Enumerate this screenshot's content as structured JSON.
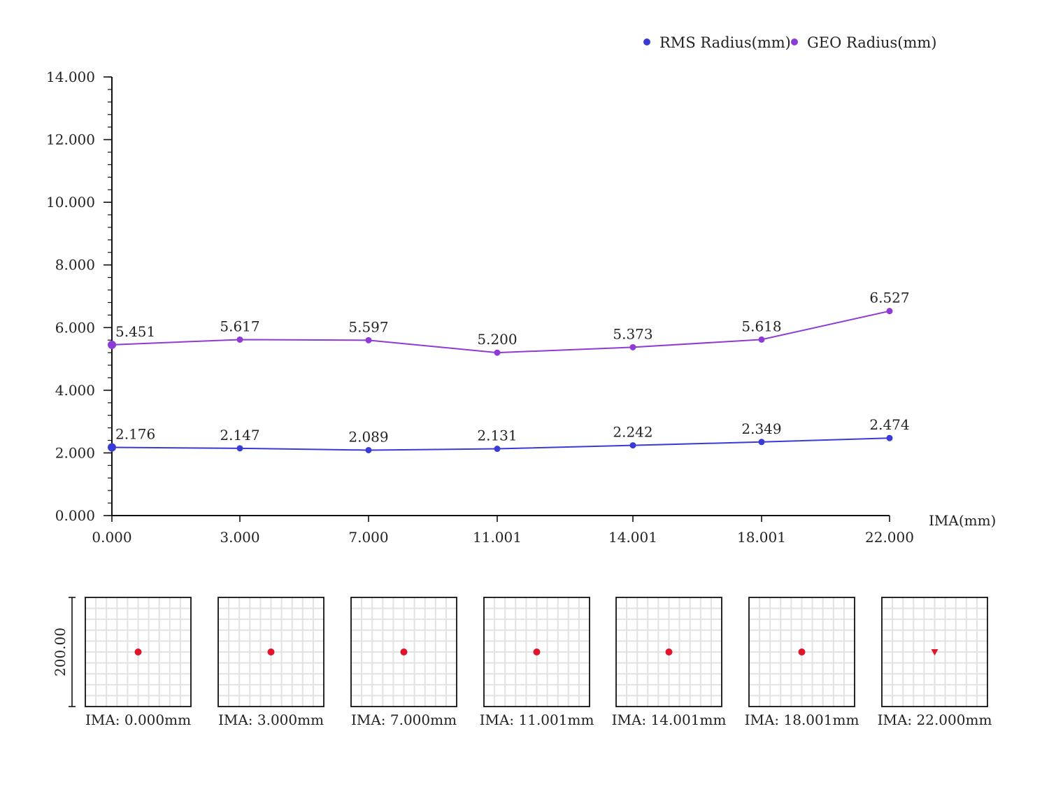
{
  "chart_data": {
    "type": "line",
    "xlabel": "IMA(mm)",
    "ylabel": "",
    "categories": [
      "0.000",
      "3.000",
      "7.000",
      "11.001",
      "14.001",
      "18.001",
      "22.000"
    ],
    "y_ticks": [
      "0.000",
      "2.000",
      "4.000",
      "6.000",
      "8.000",
      "10.000",
      "12.000",
      "14.000"
    ],
    "ylim": [
      0,
      14
    ],
    "grid": false,
    "legend_position": "top-right",
    "series": [
      {
        "name": "RMS Radius(mm)",
        "color": "#3a3ad6",
        "values": [
          2.176,
          2.147,
          2.089,
          2.131,
          2.242,
          2.349,
          2.474
        ],
        "labels": [
          "2.176",
          "2.147",
          "2.089",
          "2.131",
          "2.242",
          "2.349",
          "2.474"
        ]
      },
      {
        "name": "GEO Radius(mm)",
        "color": "#8e3ad6",
        "values": [
          5.451,
          5.617,
          5.597,
          5.2,
          5.373,
          5.618,
          6.527
        ],
        "labels": [
          "5.451",
          "5.617",
          "5.597",
          "5.200",
          "5.373",
          "5.618",
          "6.527"
        ]
      }
    ]
  },
  "spot_diagrams": {
    "scale_label": "200.00",
    "dot_color": "#e0142a",
    "items": [
      {
        "label": "IMA: 0.000mm",
        "marker": "dot"
      },
      {
        "label": "IMA: 3.000mm",
        "marker": "dot"
      },
      {
        "label": "IMA: 7.000mm",
        "marker": "dot"
      },
      {
        "label": "IMA: 11.001mm",
        "marker": "dot"
      },
      {
        "label": "IMA: 14.001mm",
        "marker": "dot"
      },
      {
        "label": "IMA: 18.001mm",
        "marker": "dot"
      },
      {
        "label": "IMA: 22.000mm",
        "marker": "triangle"
      }
    ]
  }
}
